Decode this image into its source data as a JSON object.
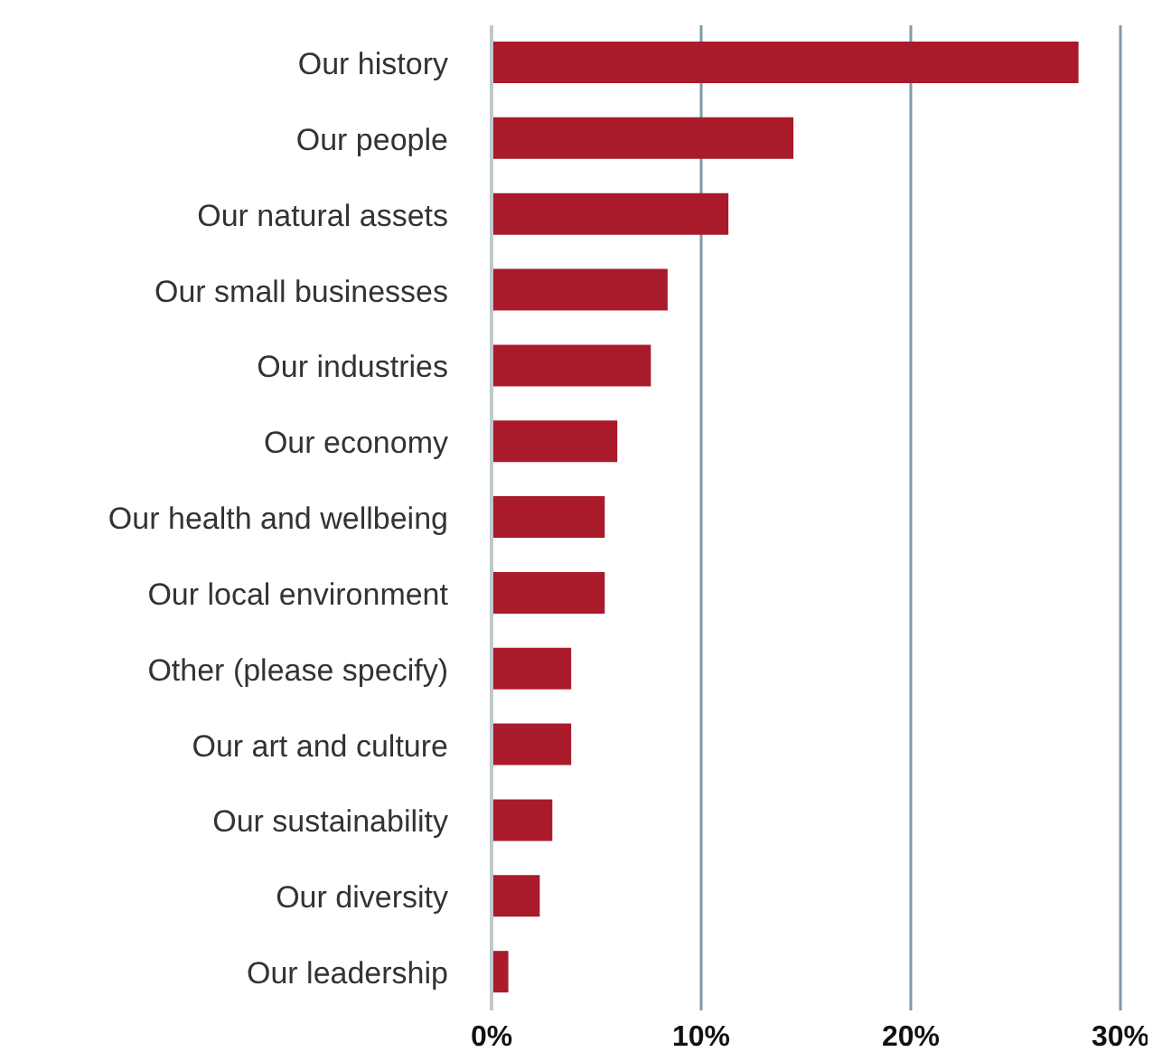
{
  "chart_data": {
    "type": "bar",
    "orientation": "horizontal",
    "categories": [
      "Our history",
      "Our people",
      "Our natural assets",
      "Our small businesses",
      "Our industries",
      "Our economy",
      "Our health and wellbeing",
      "Our local environment",
      "Other (please specify)",
      "Our art and culture",
      "Our sustainability",
      "Our diversity",
      "Our leadership"
    ],
    "values": [
      28.0,
      14.4,
      11.3,
      8.4,
      7.6,
      6.0,
      5.4,
      5.4,
      3.8,
      3.8,
      2.9,
      2.3,
      0.8
    ],
    "color": "#a91a2b",
    "xlim": [
      0,
      30
    ],
    "xticks": [
      {
        "value": 0,
        "label": "0%"
      },
      {
        "value": 10,
        "label": "10%"
      },
      {
        "value": 20,
        "label": "20%"
      },
      {
        "value": 30,
        "label": "30%"
      }
    ],
    "grid": "x",
    "legend": false
  }
}
